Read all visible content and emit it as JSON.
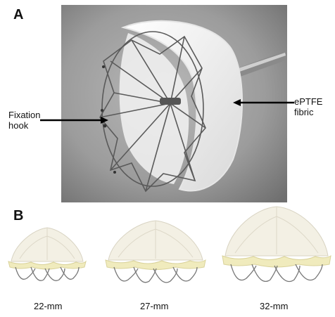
{
  "panel_a": {
    "letter": "A",
    "label_left_line1": "Fixation",
    "label_left_line2": "hook",
    "label_right_line1": "ePTFE",
    "label_right_line2": "fibric"
  },
  "panel_b": {
    "letter": "B",
    "sizes": [
      "22-mm",
      "27-mm",
      "32-mm"
    ]
  },
  "colors": {
    "photo_background": "#9a9a9a",
    "fabric": "#f4f1e6",
    "skirt": "#f1ecc0",
    "wire": "#6e6e6e"
  }
}
